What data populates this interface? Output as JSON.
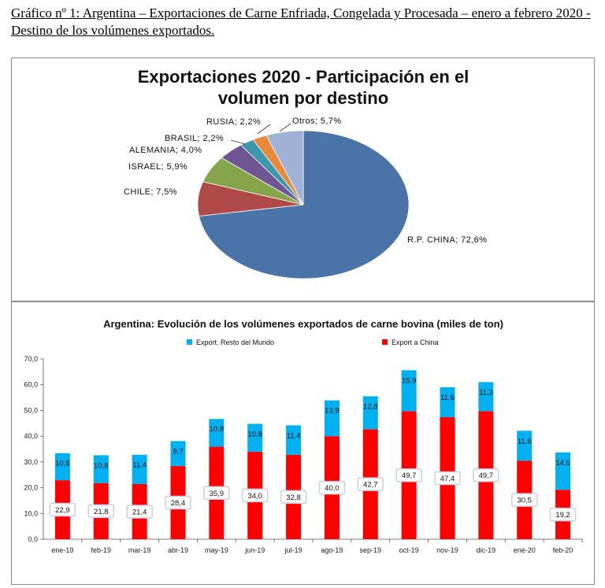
{
  "caption": "Gráfico nº 1: Argentina – Exportaciones de Carne Enfriada, Congelada y Procesada – enero a febrero 2020 - Destino de los volúmenes exportados.",
  "chart_data": [
    {
      "type": "pie",
      "title_line1": "Exportaciones 2020 - Participación en el",
      "title_line2": "volumen por destino",
      "slices": [
        {
          "label": "R.P. CHINA",
          "value": 72.6,
          "value_text": "72,6%",
          "color": "#4a73a8"
        },
        {
          "label": "CHILE",
          "value": 7.5,
          "value_text": "7,5%",
          "color": "#b04a48"
        },
        {
          "label": "ISRAEL",
          "value": 5.9,
          "value_text": "5,9%",
          "color": "#86a54b"
        },
        {
          "label": "ALEMANIA",
          "value": 4.0,
          "value_text": "4,0%",
          "color": "#6f5693"
        },
        {
          "label": "BRASIL",
          "value": 2.2,
          "value_text": "2,2%",
          "color": "#3d97ad"
        },
        {
          "label": "RUSIA",
          "value": 2.2,
          "value_text": "2,2%",
          "color": "#e8883a"
        },
        {
          "label": "Otros",
          "value": 5.7,
          "value_text": "5,7%",
          "color": "#9fb2d6"
        }
      ]
    },
    {
      "type": "bar",
      "stacked": true,
      "title": "Argentina: Evolución de los volúmenes exportados de carne bovina (miles de ton)",
      "categories": [
        "ene-19",
        "feb-19",
        "mar-19",
        "abr-19",
        "may-19",
        "jun-19",
        "jul-19",
        "ago-19",
        "sep-19",
        "oct-19",
        "nov-19",
        "dic-19",
        "ene-20",
        "feb-20"
      ],
      "ylim": [
        0,
        70
      ],
      "yticks": [
        "0,0",
        "10,0",
        "20,0",
        "30,0",
        "40,0",
        "50,0",
        "60,0",
        "70,0"
      ],
      "legend_position": "top",
      "series": [
        {
          "name": "Export a China",
          "color": "#ff0000",
          "values": [
            22.9,
            21.8,
            21.4,
            28.4,
            35.9,
            34.0,
            32.8,
            40.0,
            42.7,
            49.7,
            47.4,
            49.7,
            30.5,
            19.2
          ],
          "labels": [
            "22,9",
            "21,8",
            "21,4",
            "28,4",
            "35,9",
            "34,0",
            "32,8",
            "40,0",
            "42,7",
            "49,7",
            "47,4",
            "49,7",
            "30,5",
            "19,2"
          ]
        },
        {
          "name": "Export. Resto del Mundo",
          "color": "#00b0f0",
          "values": [
            10.5,
            10.8,
            11.4,
            9.7,
            10.8,
            10.8,
            11.4,
            13.9,
            12.8,
            15.9,
            11.6,
            11.3,
            11.6,
            14.5
          ],
          "labels": [
            "10,5",
            "10,8",
            "11,4",
            "9,7",
            "10,8",
            "10,8",
            "11,4",
            "13,9",
            "12,8",
            "15,9",
            "11,6",
            "11,3",
            "11,6",
            "14,5"
          ]
        }
      ]
    }
  ]
}
